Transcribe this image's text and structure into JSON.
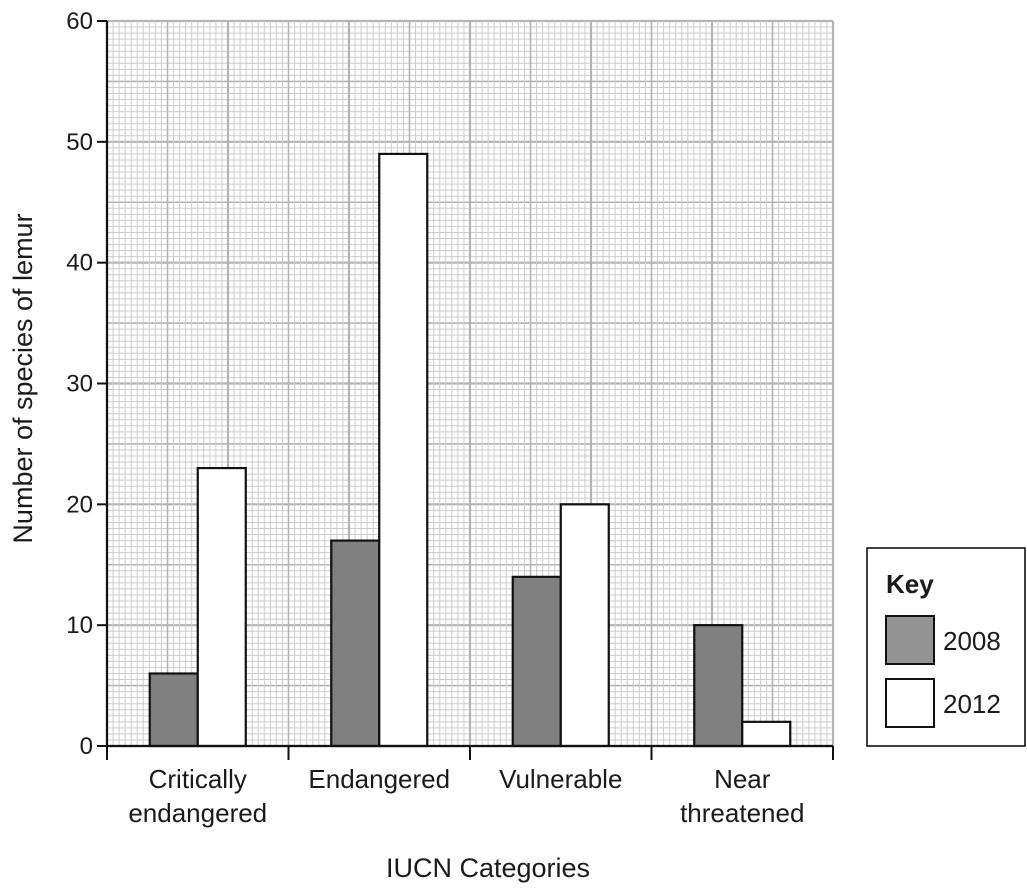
{
  "chart_data": {
    "type": "bar",
    "title": "",
    "xlabel": "IUCN Categories",
    "ylabel": "Number of species of lemur",
    "categories": [
      [
        "Critically",
        "endangered"
      ],
      [
        "Endangered"
      ],
      [
        "Vulnerable"
      ],
      [
        "Near",
        "threatened"
      ]
    ],
    "series": [
      {
        "name": "2008",
        "values": [
          6,
          17,
          14,
          10
        ],
        "color": "#808080"
      },
      {
        "name": "2012",
        "values": [
          23,
          49,
          20,
          2
        ],
        "color": "#ffffff"
      }
    ],
    "ylim": [
      0,
      60
    ],
    "yticks": [
      0,
      10,
      20,
      30,
      40,
      50,
      60
    ],
    "grid": true,
    "legend": {
      "title": "Key",
      "placement": "right"
    }
  }
}
